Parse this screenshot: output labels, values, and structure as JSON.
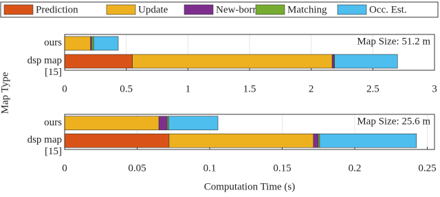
{
  "xlabel": "Computation Time (s)",
  "ylabel": "Map Type",
  "chart_data": [
    {
      "type": "bar",
      "orientation": "horizontal",
      "stacked": true,
      "grid": true,
      "annotation": "Map Size: 51.2 m",
      "categories": [
        "ours",
        "dsp map [15]"
      ],
      "xlim": [
        0,
        3
      ],
      "xticks": [
        0,
        0.5,
        1,
        1.5,
        2,
        2.5,
        3
      ],
      "series": [
        {
          "name": "Prediction",
          "color": "#d95319",
          "values": [
            0,
            0.55
          ]
        },
        {
          "name": "Update",
          "color": "#edb120",
          "values": [
            0.21,
            1.62
          ]
        },
        {
          "name": "New-born",
          "color": "#7e2f8e",
          "values": [
            0.01,
            0.015
          ]
        },
        {
          "name": "Matching",
          "color": "#77ac30",
          "values": [
            0.015,
            0.005
          ]
        },
        {
          "name": "Occ. Est.",
          "color": "#4dbeee",
          "values": [
            0.2,
            0.51
          ]
        }
      ]
    },
    {
      "type": "bar",
      "orientation": "horizontal",
      "stacked": true,
      "grid": true,
      "annotation": "Map Size: 25.6 m",
      "categories": [
        "ours",
        "dsp map [15]"
      ],
      "xlim": [
        0,
        0.255
      ],
      "xticks": [
        0,
        0.05,
        0.1,
        0.15,
        0.2,
        0.25
      ],
      "series": [
        {
          "color": "#d95319",
          "values": [
            0,
            0.072
          ]
        },
        {
          "color": "#edb120",
          "values": [
            0.065,
            0.0995
          ]
        },
        {
          "color": "#7e2f8e",
          "values": [
            0.0057,
            0.0033
          ]
        },
        {
          "color": "#77ac30",
          "values": [
            0.001,
            0.001
          ]
        },
        {
          "color": "#4dbeee",
          "values": [
            0.034,
            0.0668
          ]
        }
      ]
    }
  ]
}
